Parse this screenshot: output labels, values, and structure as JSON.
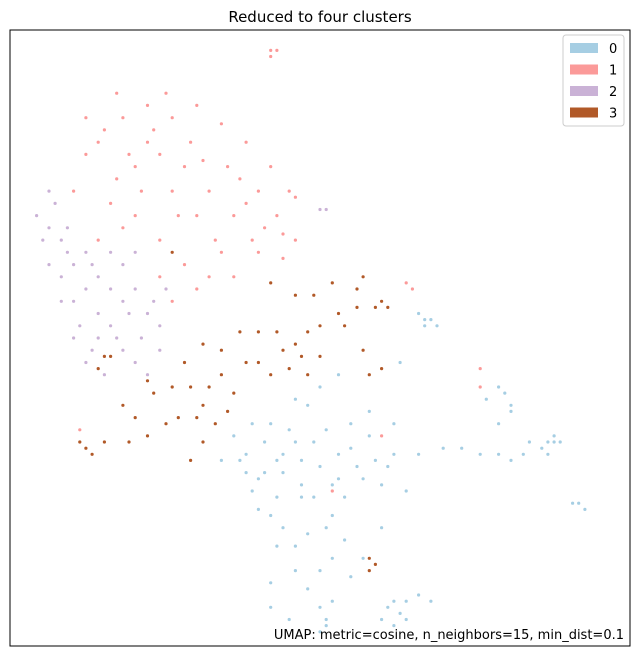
{
  "chart_data": {
    "type": "scatter",
    "title": "Reduced to four clusters",
    "annotation": "UMAP: metric=cosine, n_neighbors=15, min_dist=0.1",
    "xlim": [
      0,
      100
    ],
    "ylim": [
      0,
      100
    ],
    "legend_position": "top-right",
    "grid": false,
    "ticks": false,
    "series": [
      {
        "name": "0",
        "color": "#a6cee3",
        "points": [
          [
            40,
            27
          ],
          [
            42,
            21
          ],
          [
            44,
            31
          ],
          [
            47,
            24
          ],
          [
            43,
            16
          ],
          [
            46,
            12
          ],
          [
            48,
            9
          ],
          [
            42,
            6
          ],
          [
            45,
            4
          ],
          [
            50,
            6
          ],
          [
            52,
            14
          ],
          [
            51,
            19
          ],
          [
            54,
            24
          ],
          [
            56,
            29
          ],
          [
            50,
            29
          ],
          [
            58,
            34
          ],
          [
            62,
            31
          ],
          [
            64,
            25
          ],
          [
            60,
            19
          ],
          [
            57,
            14
          ],
          [
            52,
            7
          ],
          [
            51,
            4
          ],
          [
            55,
            11
          ],
          [
            53,
            27
          ],
          [
            49,
            33
          ],
          [
            45,
            35
          ],
          [
            41,
            33
          ],
          [
            38,
            31
          ],
          [
            36,
            34
          ],
          [
            39,
            25
          ],
          [
            44,
            28
          ],
          [
            47,
            30
          ],
          [
            55,
            32
          ],
          [
            60,
            26
          ],
          [
            62,
            36
          ],
          [
            58,
            38
          ],
          [
            66,
            31
          ],
          [
            70,
            32
          ],
          [
            73,
            32
          ],
          [
            76,
            31
          ],
          [
            79,
            31
          ],
          [
            83,
            31
          ],
          [
            86,
            32
          ],
          [
            88,
            33
          ],
          [
            88,
            34
          ],
          [
            87,
            33
          ],
          [
            89,
            33
          ],
          [
            87,
            31
          ],
          [
            84,
            33
          ],
          [
            81,
            30
          ],
          [
            91,
            23
          ],
          [
            92,
            23
          ],
          [
            93,
            22
          ],
          [
            79,
            42
          ],
          [
            80,
            41
          ],
          [
            81,
            39
          ],
          [
            81,
            38
          ],
          [
            79,
            36
          ],
          [
            77,
            40
          ],
          [
            66,
            54
          ],
          [
            67,
            53
          ],
          [
            68,
            53
          ],
          [
            67,
            52
          ],
          [
            69,
            52
          ],
          [
            63,
            46
          ],
          [
            61,
            6
          ],
          [
            62,
            7
          ],
          [
            63,
            5
          ],
          [
            64,
            4
          ],
          [
            66,
            8
          ],
          [
            64,
            7
          ],
          [
            68,
            7
          ],
          [
            60,
            4
          ],
          [
            62,
            3
          ],
          [
            50,
            2
          ],
          [
            51,
            3
          ],
          [
            43,
            30
          ],
          [
            48,
            39
          ],
          [
            50,
            42
          ],
          [
            53,
            44
          ],
          [
            46,
            40
          ],
          [
            42,
            36
          ],
          [
            37,
            30
          ],
          [
            34,
            30
          ],
          [
            39,
            36
          ],
          [
            52,
            21
          ],
          [
            44,
            19
          ],
          [
            54,
            17
          ],
          [
            48,
            18
          ],
          [
            46,
            16
          ],
          [
            50,
            12
          ],
          [
            42,
            10
          ],
          [
            47,
            26
          ],
          [
            59,
            30
          ],
          [
            61,
            29
          ],
          [
            55,
            36
          ],
          [
            57,
            27
          ],
          [
            49,
            24
          ],
          [
            43,
            24
          ],
          [
            41,
            28
          ],
          [
            40,
            22
          ],
          [
            38,
            28
          ],
          [
            46,
            33
          ],
          [
            51,
            35
          ],
          [
            53,
            31
          ],
          [
            52,
            26
          ]
        ]
      },
      {
        "name": "1",
        "color": "#fb9a99",
        "points": [
          [
            15,
            84
          ],
          [
            18,
            86
          ],
          [
            22,
            88
          ],
          [
            26,
            86
          ],
          [
            30,
            88
          ],
          [
            34,
            85
          ],
          [
            38,
            82
          ],
          [
            42,
            78
          ],
          [
            45,
            74
          ],
          [
            44,
            67
          ],
          [
            40,
            64
          ],
          [
            36,
            70
          ],
          [
            32,
            74
          ],
          [
            28,
            78
          ],
          [
            24,
            80
          ],
          [
            20,
            78
          ],
          [
            17,
            76
          ],
          [
            14,
            82
          ],
          [
            12,
            86
          ],
          [
            16,
            72
          ],
          [
            20,
            70
          ],
          [
            24,
            66
          ],
          [
            28,
            62
          ],
          [
            32,
            60
          ],
          [
            30,
            70
          ],
          [
            26,
            74
          ],
          [
            22,
            82
          ],
          [
            19,
            80
          ],
          [
            35,
            78
          ],
          [
            38,
            72
          ],
          [
            41,
            68
          ],
          [
            34,
            64
          ],
          [
            30,
            58
          ],
          [
            26,
            56
          ],
          [
            24,
            60
          ],
          [
            36,
            60
          ],
          [
            33,
            66
          ],
          [
            18,
            68
          ],
          [
            21,
            74
          ],
          [
            27,
            70
          ],
          [
            29,
            82
          ],
          [
            31,
            79
          ],
          [
            37,
            76
          ],
          [
            39,
            66
          ],
          [
            43,
            70
          ],
          [
            46,
            66
          ],
          [
            40,
            74
          ],
          [
            12,
            80
          ],
          [
            10,
            74
          ],
          [
            14,
            66
          ],
          [
            42,
            96
          ],
          [
            43,
            97
          ],
          [
            42,
            97
          ],
          [
            11,
            35
          ],
          [
            64,
            59
          ],
          [
            65,
            58
          ],
          [
            76,
            45
          ],
          [
            76,
            42
          ],
          [
            60,
            34
          ],
          [
            52,
            25
          ],
          [
            46,
            73
          ],
          [
            44,
            63
          ],
          [
            25,
            90
          ],
          [
            23,
            84
          ],
          [
            17,
            90
          ]
        ]
      },
      {
        "name": "2",
        "color": "#cab2d6",
        "points": [
          [
            4,
            70
          ],
          [
            6,
            68
          ],
          [
            8,
            66
          ],
          [
            10,
            62
          ],
          [
            12,
            58
          ],
          [
            14,
            54
          ],
          [
            16,
            52
          ],
          [
            18,
            48
          ],
          [
            20,
            46
          ],
          [
            22,
            44
          ],
          [
            24,
            48
          ],
          [
            22,
            54
          ],
          [
            20,
            58
          ],
          [
            18,
            62
          ],
          [
            16,
            64
          ],
          [
            14,
            60
          ],
          [
            12,
            64
          ],
          [
            10,
            56
          ],
          [
            8,
            60
          ],
          [
            6,
            62
          ],
          [
            5,
            66
          ],
          [
            7,
            72
          ],
          [
            9,
            68
          ],
          [
            11,
            52
          ],
          [
            13,
            48
          ],
          [
            15,
            44
          ],
          [
            17,
            50
          ],
          [
            19,
            54
          ],
          [
            21,
            50
          ],
          [
            23,
            56
          ],
          [
            25,
            58
          ],
          [
            20,
            64
          ],
          [
            18,
            56
          ],
          [
            16,
            58
          ],
          [
            14,
            50
          ],
          [
            24,
            52
          ],
          [
            12,
            46
          ],
          [
            10,
            50
          ],
          [
            8,
            56
          ],
          [
            6,
            74
          ],
          [
            50,
            71
          ],
          [
            51,
            71
          ],
          [
            9,
            64
          ],
          [
            13,
            62
          ]
        ]
      },
      {
        "name": "3",
        "color": "#b15928",
        "points": [
          [
            12,
            32
          ],
          [
            13,
            31
          ],
          [
            11,
            33
          ],
          [
            15,
            33
          ],
          [
            19,
            33
          ],
          [
            22,
            34
          ],
          [
            25,
            36
          ],
          [
            27,
            37
          ],
          [
            30,
            37
          ],
          [
            31,
            39
          ],
          [
            33,
            36
          ],
          [
            35,
            38
          ],
          [
            36,
            41
          ],
          [
            34,
            44
          ],
          [
            32,
            42
          ],
          [
            29,
            42
          ],
          [
            28,
            46
          ],
          [
            31,
            49
          ],
          [
            34,
            48
          ],
          [
            37,
            51
          ],
          [
            40,
            46
          ],
          [
            42,
            44
          ],
          [
            44,
            48
          ],
          [
            46,
            49
          ],
          [
            48,
            51
          ],
          [
            50,
            52
          ],
          [
            49,
            57
          ],
          [
            53,
            54
          ],
          [
            56,
            55
          ],
          [
            57,
            60
          ],
          [
            52,
            59
          ],
          [
            54,
            52
          ],
          [
            57,
            48
          ],
          [
            60,
            45
          ],
          [
            58,
            44
          ],
          [
            59,
            55
          ],
          [
            56,
            58
          ],
          [
            47,
            47
          ],
          [
            45,
            45
          ],
          [
            43,
            51
          ],
          [
            40,
            51
          ],
          [
            38,
            46
          ],
          [
            26,
            42
          ],
          [
            23,
            41
          ],
          [
            22,
            43
          ],
          [
            20,
            37
          ],
          [
            18,
            39
          ],
          [
            31,
            33
          ],
          [
            29,
            30
          ],
          [
            14,
            45
          ],
          [
            15,
            47
          ],
          [
            16,
            47
          ],
          [
            58,
            14
          ],
          [
            59,
            13
          ],
          [
            58,
            12
          ],
          [
            48,
            44
          ],
          [
            60,
            56
          ],
          [
            61,
            55
          ],
          [
            50,
            47
          ],
          [
            26,
            64
          ],
          [
            42,
            59
          ],
          [
            46,
            57
          ]
        ]
      }
    ]
  }
}
